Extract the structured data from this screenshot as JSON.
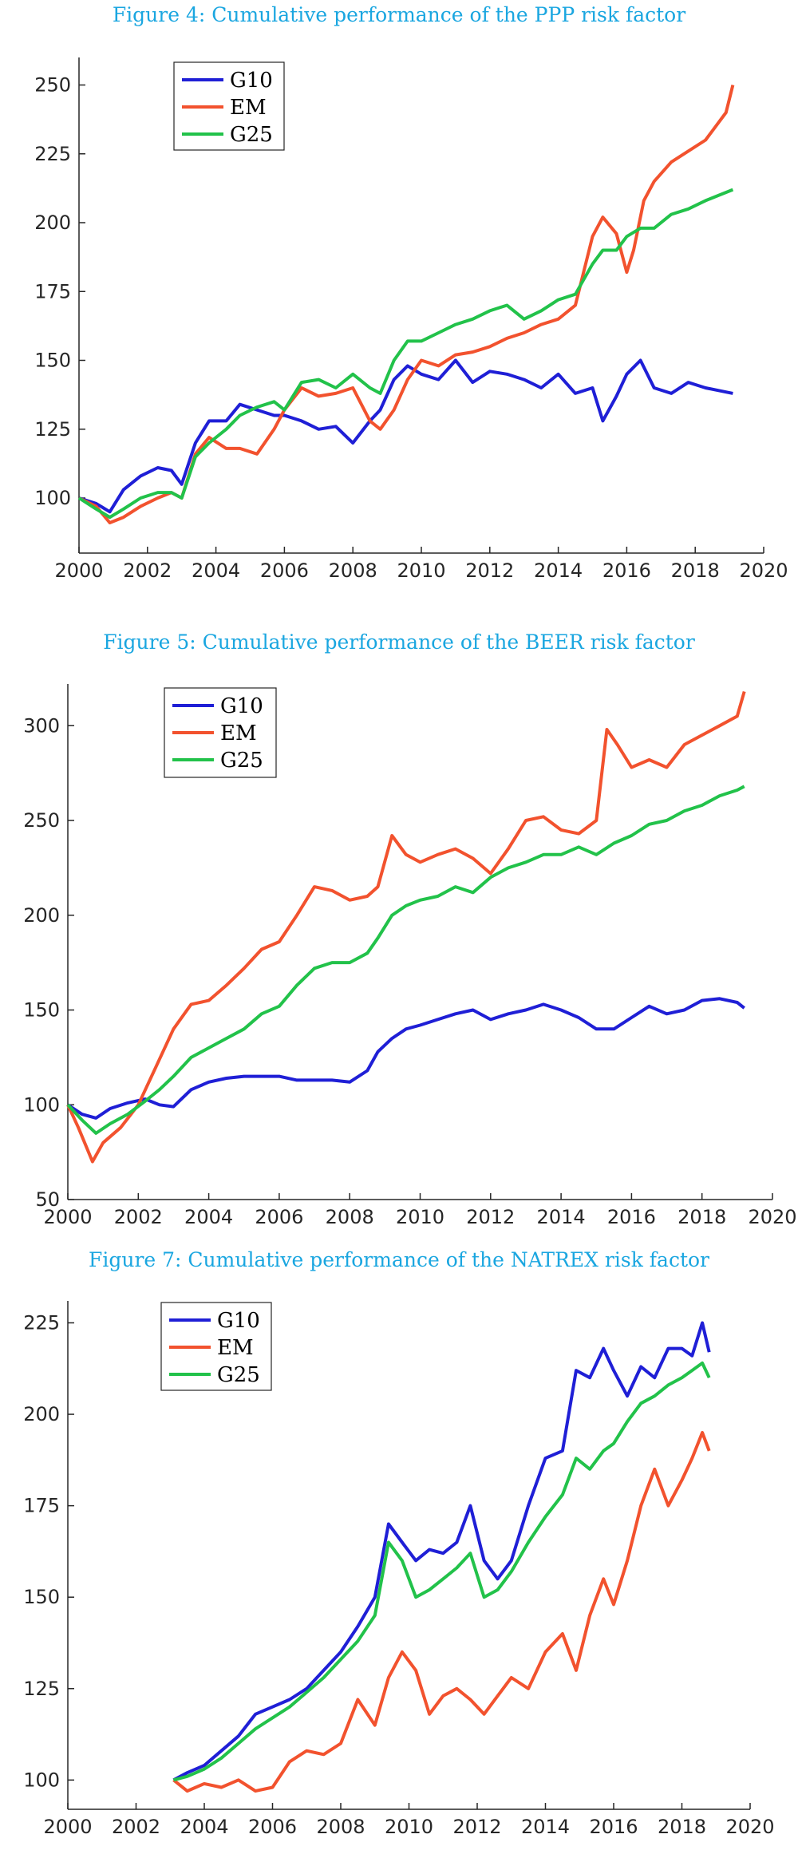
{
  "figures": [
    {
      "title": "Figure 4: Cumulative performance of the PPP risk factor"
    },
    {
      "title": "Figure 5: Cumulative performance of the BEER risk factor"
    },
    {
      "title": "Figure 7: Cumulative performance of the NATREX risk factor"
    }
  ],
  "chart_data": [
    {
      "type": "line",
      "title": "Figure 4: Cumulative performance of the PPP risk factor",
      "xlabel": "",
      "ylabel": "",
      "xlim": [
        2000,
        2020
      ],
      "ylim": [
        80,
        260
      ],
      "xticks": [
        2000,
        2002,
        2004,
        2006,
        2008,
        2010,
        2012,
        2014,
        2016,
        2018,
        2020
      ],
      "yticks": [
        100,
        125,
        150,
        175,
        200,
        225,
        250
      ],
      "legend": "top-left",
      "grid": false,
      "series": [
        {
          "name": "G10",
          "color": "#1f1fd6",
          "x": [
            2000,
            2000.5,
            2000.9,
            2001.3,
            2001.8,
            2002.3,
            2002.7,
            2003.0,
            2003.4,
            2003.8,
            2004.3,
            2004.7,
            2005.2,
            2005.7,
            2006.0,
            2006.5,
            2007.0,
            2007.5,
            2008.0,
            2008.5,
            2008.8,
            2009.2,
            2009.6,
            2010.0,
            2010.5,
            2011.0,
            2011.5,
            2012.0,
            2012.5,
            2013.0,
            2013.5,
            2014.0,
            2014.5,
            2015.0,
            2015.3,
            2015.7,
            2016.0,
            2016.4,
            2016.8,
            2017.3,
            2017.8,
            2018.3,
            2018.7,
            2019.1
          ],
          "values": [
            100,
            98,
            95,
            103,
            108,
            111,
            110,
            105,
            120,
            128,
            128,
            134,
            132,
            130,
            130,
            128,
            125,
            126,
            120,
            128,
            132,
            143,
            148,
            145,
            143,
            150,
            142,
            146,
            145,
            143,
            140,
            145,
            138,
            140,
            128,
            137,
            145,
            150,
            140,
            138,
            142,
            140,
            139,
            138
          ]
        },
        {
          "name": "EM",
          "color": "#f2522e",
          "x": [
            2000,
            2000.5,
            2000.9,
            2001.3,
            2001.8,
            2002.3,
            2002.7,
            2003.0,
            2003.4,
            2003.8,
            2004.3,
            2004.7,
            2005.2,
            2005.7,
            2006.0,
            2006.5,
            2007.0,
            2007.5,
            2008.0,
            2008.5,
            2008.8,
            2009.2,
            2009.6,
            2010.0,
            2010.5,
            2011.0,
            2011.5,
            2012.0,
            2012.5,
            2013.0,
            2013.5,
            2014.0,
            2014.5,
            2015.0,
            2015.3,
            2015.7,
            2016.0,
            2016.2,
            2016.5,
            2016.8,
            2017.3,
            2017.8,
            2018.3,
            2018.6,
            2018.9,
            2019.1
          ],
          "values": [
            100,
            97,
            91,
            93,
            97,
            100,
            102,
            100,
            116,
            122,
            118,
            118,
            116,
            125,
            132,
            140,
            137,
            138,
            140,
            128,
            125,
            132,
            143,
            150,
            148,
            152,
            153,
            155,
            158,
            160,
            163,
            165,
            170,
            195,
            202,
            196,
            182,
            190,
            208,
            215,
            222,
            226,
            230,
            235,
            240,
            250
          ]
        },
        {
          "name": "G25",
          "color": "#22c24a",
          "x": [
            2000,
            2000.5,
            2000.9,
            2001.3,
            2001.8,
            2002.3,
            2002.7,
            2003.0,
            2003.4,
            2003.8,
            2004.3,
            2004.7,
            2005.2,
            2005.7,
            2006.0,
            2006.5,
            2007.0,
            2007.5,
            2008.0,
            2008.5,
            2008.8,
            2009.2,
            2009.6,
            2010.0,
            2010.5,
            2011.0,
            2011.5,
            2012.0,
            2012.5,
            2013.0,
            2013.5,
            2014.0,
            2014.5,
            2015.0,
            2015.3,
            2015.7,
            2016.0,
            2016.4,
            2016.8,
            2017.3,
            2017.8,
            2018.3,
            2018.7,
            2019.1
          ],
          "values": [
            100,
            96,
            93,
            96,
            100,
            102,
            102,
            100,
            115,
            120,
            125,
            130,
            133,
            135,
            132,
            142,
            143,
            140,
            145,
            140,
            138,
            150,
            157,
            157,
            160,
            163,
            165,
            168,
            170,
            165,
            168,
            172,
            174,
            185,
            190,
            190,
            195,
            198,
            198,
            203,
            205,
            208,
            210,
            212
          ]
        }
      ]
    },
    {
      "type": "line",
      "title": "Figure 5: Cumulative performance of the BEER risk factor",
      "xlabel": "",
      "ylabel": "",
      "xlim": [
        2000,
        2020
      ],
      "ylim": [
        50,
        322
      ],
      "xticks": [
        2000,
        2002,
        2004,
        2006,
        2008,
        2010,
        2012,
        2014,
        2016,
        2018,
        2020
      ],
      "yticks": [
        50,
        100,
        150,
        200,
        250,
        300
      ],
      "legend": "top-left",
      "grid": false,
      "series": [
        {
          "name": "G10",
          "color": "#1f1fd6",
          "x": [
            2000,
            2000.4,
            2000.8,
            2001.2,
            2001.7,
            2002.2,
            2002.6,
            2003.0,
            2003.5,
            2004.0,
            2004.5,
            2005.0,
            2005.5,
            2006.0,
            2006.5,
            2007.0,
            2007.5,
            2008.0,
            2008.5,
            2008.8,
            2009.2,
            2009.6,
            2010.0,
            2010.5,
            2011.0,
            2011.5,
            2012.0,
            2012.5,
            2013.0,
            2013.5,
            2014.0,
            2014.5,
            2015.0,
            2015.5,
            2016.0,
            2016.5,
            2017.0,
            2017.5,
            2018.0,
            2018.5,
            2019.0,
            2019.2
          ],
          "values": [
            100,
            95,
            93,
            98,
            101,
            103,
            100,
            99,
            108,
            112,
            114,
            115,
            115,
            115,
            113,
            113,
            113,
            112,
            118,
            128,
            135,
            140,
            142,
            145,
            148,
            150,
            145,
            148,
            150,
            153,
            150,
            146,
            140,
            140,
            146,
            152,
            148,
            150,
            155,
            156,
            154,
            151
          ]
        },
        {
          "name": "EM",
          "color": "#f2522e",
          "x": [
            2000,
            2000.3,
            2000.7,
            2001.0,
            2001.5,
            2002.0,
            2002.5,
            2003.0,
            2003.5,
            2004.0,
            2004.5,
            2005.0,
            2005.5,
            2006.0,
            2006.5,
            2007.0,
            2007.5,
            2008.0,
            2008.5,
            2008.8,
            2009.2,
            2009.6,
            2010.0,
            2010.5,
            2011.0,
            2011.5,
            2012.0,
            2012.5,
            2013.0,
            2013.5,
            2014.0,
            2014.5,
            2015.0,
            2015.3,
            2015.6,
            2016.0,
            2016.5,
            2017.0,
            2017.5,
            2018.0,
            2018.5,
            2019.0,
            2019.2
          ],
          "values": [
            100,
            88,
            70,
            80,
            88,
            100,
            120,
            140,
            153,
            155,
            163,
            172,
            182,
            186,
            200,
            215,
            213,
            208,
            210,
            215,
            242,
            232,
            228,
            232,
            235,
            230,
            222,
            235,
            250,
            252,
            245,
            243,
            250,
            298,
            290,
            278,
            282,
            278,
            290,
            295,
            300,
            305,
            318
          ]
        },
        {
          "name": "G25",
          "color": "#22c24a",
          "x": [
            2000,
            2000.4,
            2000.8,
            2001.2,
            2001.7,
            2002.2,
            2002.6,
            2003.0,
            2003.5,
            2004.0,
            2004.5,
            2005.0,
            2005.5,
            2006.0,
            2006.5,
            2007.0,
            2007.5,
            2008.0,
            2008.5,
            2008.8,
            2009.2,
            2009.6,
            2010.0,
            2010.5,
            2011.0,
            2011.5,
            2012.0,
            2012.5,
            2013.0,
            2013.5,
            2014.0,
            2014.5,
            2015.0,
            2015.5,
            2016.0,
            2016.5,
            2017.0,
            2017.5,
            2018.0,
            2018.5,
            2019.0,
            2019.2
          ],
          "values": [
            100,
            92,
            85,
            90,
            95,
            102,
            108,
            115,
            125,
            130,
            135,
            140,
            148,
            152,
            163,
            172,
            175,
            175,
            180,
            188,
            200,
            205,
            208,
            210,
            215,
            212,
            220,
            225,
            228,
            232,
            232,
            236,
            232,
            238,
            242,
            248,
            250,
            255,
            258,
            263,
            266,
            268
          ]
        }
      ]
    },
    {
      "type": "line",
      "title": "Figure 7: Cumulative performance of the NATREX risk factor",
      "xlabel": "",
      "ylabel": "",
      "xlim": [
        2000,
        2020
      ],
      "ylim": [
        92,
        231
      ],
      "xticks": [
        2000,
        2002,
        2004,
        2006,
        2008,
        2010,
        2012,
        2014,
        2016,
        2018,
        2020
      ],
      "yticks": [
        100,
        125,
        150,
        175,
        200,
        225
      ],
      "legend": "top-left",
      "grid": false,
      "series": [
        {
          "name": "G10",
          "color": "#1f1fd6",
          "x": [
            2003.1,
            2003.5,
            2004.0,
            2004.5,
            2005.0,
            2005.5,
            2006.0,
            2006.5,
            2007.0,
            2007.5,
            2008.0,
            2008.5,
            2009.0,
            2009.4,
            2009.8,
            2010.2,
            2010.6,
            2011.0,
            2011.4,
            2011.8,
            2012.2,
            2012.6,
            2013.0,
            2013.5,
            2014.0,
            2014.5,
            2014.9,
            2015.3,
            2015.7,
            2016.0,
            2016.4,
            2016.8,
            2017.2,
            2017.6,
            2018.0,
            2018.3,
            2018.6,
            2018.8
          ],
          "values": [
            100,
            102,
            104,
            108,
            112,
            118,
            120,
            122,
            125,
            130,
            135,
            142,
            150,
            170,
            165,
            160,
            163,
            162,
            165,
            175,
            160,
            155,
            160,
            175,
            188,
            190,
            212,
            210,
            218,
            212,
            205,
            213,
            210,
            218,
            218,
            216,
            225,
            217
          ]
        },
        {
          "name": "EM",
          "color": "#f2522e",
          "x": [
            2003.1,
            2003.5,
            2004.0,
            2004.5,
            2005.0,
            2005.5,
            2006.0,
            2006.5,
            2007.0,
            2007.5,
            2008.0,
            2008.5,
            2009.0,
            2009.4,
            2009.8,
            2010.2,
            2010.6,
            2011.0,
            2011.4,
            2011.8,
            2012.2,
            2012.6,
            2013.0,
            2013.5,
            2014.0,
            2014.5,
            2014.9,
            2015.3,
            2015.7,
            2016.0,
            2016.4,
            2016.8,
            2017.2,
            2017.6,
            2018.0,
            2018.3,
            2018.6,
            2018.8
          ],
          "values": [
            100,
            97,
            99,
            98,
            100,
            97,
            98,
            105,
            108,
            107,
            110,
            122,
            115,
            128,
            135,
            130,
            118,
            123,
            125,
            122,
            118,
            123,
            128,
            125,
            135,
            140,
            130,
            145,
            155,
            148,
            160,
            175,
            185,
            175,
            182,
            188,
            195,
            190
          ]
        },
        {
          "name": "G25",
          "color": "#22c24a",
          "x": [
            2003.1,
            2003.5,
            2004.0,
            2004.5,
            2005.0,
            2005.5,
            2006.0,
            2006.5,
            2007.0,
            2007.5,
            2008.0,
            2008.5,
            2009.0,
            2009.4,
            2009.8,
            2010.2,
            2010.6,
            2011.0,
            2011.4,
            2011.8,
            2012.2,
            2012.6,
            2013.0,
            2013.5,
            2014.0,
            2014.5,
            2014.9,
            2015.3,
            2015.7,
            2016.0,
            2016.4,
            2016.8,
            2017.2,
            2017.6,
            2018.0,
            2018.3,
            2018.6,
            2018.8
          ],
          "values": [
            100,
            101,
            103,
            106,
            110,
            114,
            117,
            120,
            124,
            128,
            133,
            138,
            145,
            165,
            160,
            150,
            152,
            155,
            158,
            162,
            150,
            152,
            157,
            165,
            172,
            178,
            188,
            185,
            190,
            192,
            198,
            203,
            205,
            208,
            210,
            212,
            214,
            210
          ]
        }
      ]
    }
  ]
}
